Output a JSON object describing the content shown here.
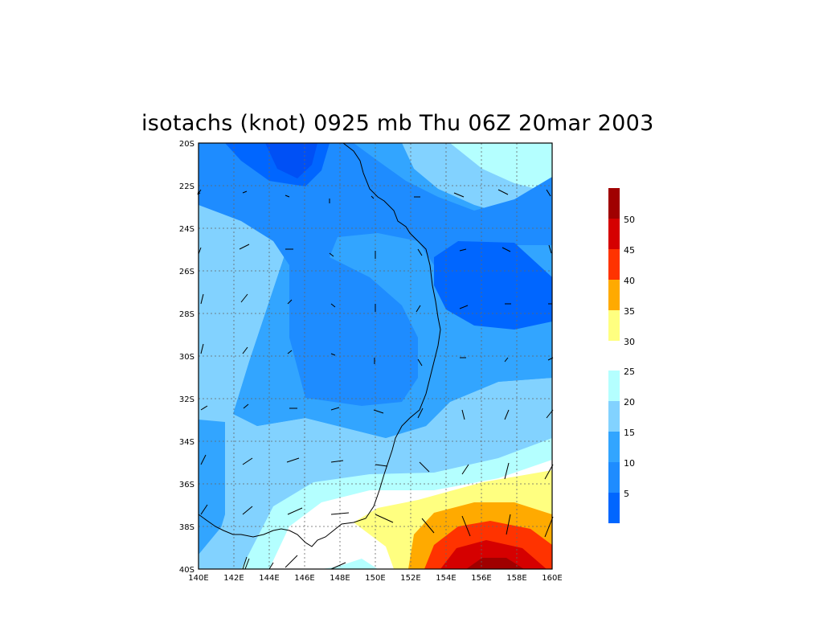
{
  "title": "isotachs (knot) 0925 mb Thu 06Z 20mar 2003",
  "map": {
    "lon_ticks": [
      "140E",
      "142E",
      "144E",
      "146E",
      "148E",
      "150E",
      "152E",
      "154E",
      "156E",
      "158E",
      "160E"
    ],
    "lat_ticks": [
      "20S",
      "22S",
      "24S",
      "26S",
      "28S",
      "30S",
      "32S",
      "34S",
      "36S",
      "38S",
      "40S"
    ]
  },
  "colorbar": {
    "upper": {
      "labels": [
        "30",
        "35",
        "40",
        "45",
        "50"
      ],
      "colors": [
        "#ffff80",
        "#ffaa00",
        "#ff3300",
        "#d50000",
        "#a00000"
      ]
    },
    "lower": {
      "labels": [
        "5",
        "10",
        "15",
        "20",
        "25"
      ],
      "colors": [
        "#0066ff",
        "#1e8cff",
        "#32a5ff",
        "#82d2ff",
        "#b4ffff"
      ]
    }
  },
  "colors": {
    "lt5": "#0050f5",
    "5-10": "#0066ff",
    "10-15": "#1e8cff",
    "15-20": "#32a5ff",
    "20-25": "#82d2ff",
    "25-30": "#b4ffff",
    "white": "#ffffff",
    "30-35": "#ffff80",
    "35-40": "#ffaa00",
    "40-45": "#ff3300",
    "45-50": "#d50000",
    "50+": "#a00000"
  }
}
